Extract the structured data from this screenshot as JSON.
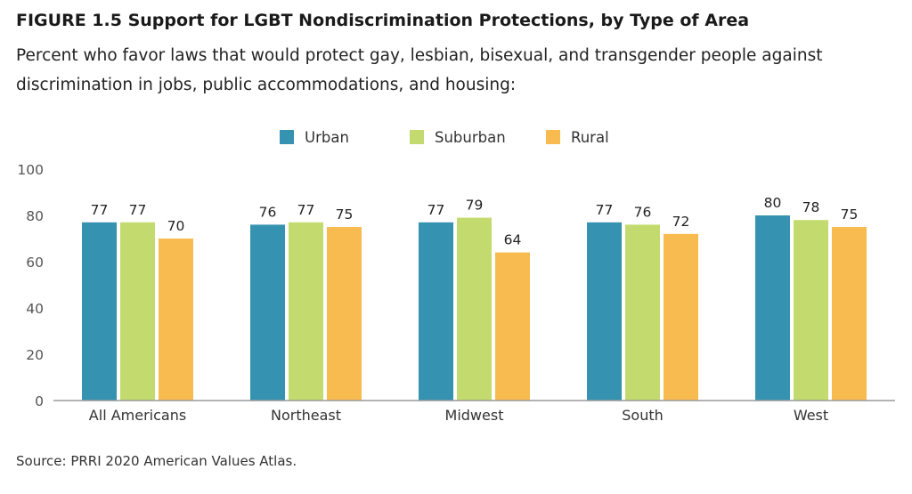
{
  "figure": {
    "title": "FIGURE 1.5  Support for LGBT Nondiscrimination Protections, by Type of Area",
    "subtitle": "Percent who favor laws that would protect gay, lesbian, bisexual, and transgender people against discrimination in jobs, public accommodations, and housing:",
    "source": "Source: PRRI 2020 American Values Atlas."
  },
  "chart_data": {
    "type": "bar",
    "categories": [
      "All Americans",
      "Northeast",
      "Midwest",
      "South",
      "West"
    ],
    "series": [
      {
        "name": "Urban",
        "color": "#3592b1",
        "values": [
          77,
          76,
          77,
          77,
          80
        ]
      },
      {
        "name": "Suburban",
        "color": "#c3db6e",
        "values": [
          77,
          77,
          79,
          76,
          78
        ]
      },
      {
        "name": "Rural",
        "color": "#f8bb4f",
        "values": [
          70,
          75,
          64,
          72,
          75
        ]
      }
    ],
    "ylim": [
      0,
      100
    ],
    "yticks": [
      0,
      20,
      40,
      60,
      80,
      100
    ],
    "legend_position": "top-center",
    "grid": false
  }
}
